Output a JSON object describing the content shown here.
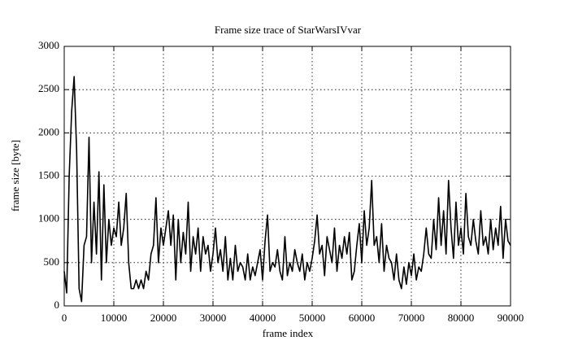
{
  "chart_data": {
    "type": "line",
    "title": "Frame size trace of StarWarsIVvar",
    "xlabel": "frame index",
    "ylabel": "frame size [byte]",
    "color": "#000000",
    "grid": true,
    "xlim": [
      0,
      90000
    ],
    "xticks": [
      0,
      10000,
      20000,
      30000,
      40000,
      50000,
      60000,
      70000,
      80000,
      90000
    ],
    "ylim": [
      0,
      3000
    ],
    "yticks": [
      0,
      500,
      1000,
      1500,
      2000,
      2500,
      3000
    ],
    "x": [
      0,
      500,
      1000,
      1500,
      2000,
      2500,
      3000,
      3500,
      4000,
      4500,
      5000,
      5500,
      6000,
      6500,
      7000,
      7500,
      8000,
      8500,
      9000,
      9500,
      10000,
      10500,
      11000,
      11500,
      12000,
      12500,
      13000,
      13500,
      14000,
      14500,
      15000,
      15500,
      16000,
      16500,
      17000,
      17500,
      18000,
      18500,
      19000,
      19500,
      20000,
      20500,
      21000,
      21500,
      22000,
      22500,
      23000,
      23500,
      24000,
      24500,
      25000,
      25500,
      26000,
      26500,
      27000,
      27500,
      28000,
      28500,
      29000,
      29500,
      30000,
      30500,
      31000,
      31500,
      32000,
      32500,
      33000,
      33500,
      34000,
      34500,
      35000,
      35500,
      36000,
      36500,
      37000,
      37500,
      38000,
      38500,
      39000,
      39500,
      40000,
      40500,
      41000,
      41500,
      42000,
      42500,
      43000,
      43500,
      44000,
      44500,
      45000,
      45500,
      46000,
      46500,
      47000,
      47500,
      48000,
      48500,
      49000,
      49500,
      50000,
      50500,
      51000,
      51500,
      52000,
      52500,
      53000,
      53500,
      54000,
      54500,
      55000,
      55500,
      56000,
      56500,
      57000,
      57500,
      58000,
      58500,
      59000,
      59500,
      60000,
      60500,
      61000,
      61500,
      62000,
      62500,
      63000,
      63500,
      64000,
      64500,
      65000,
      65500,
      66000,
      66500,
      67000,
      67500,
      68000,
      68500,
      69000,
      69500,
      70000,
      70500,
      71000,
      71500,
      72000,
      72500,
      73000,
      73500,
      74000,
      74500,
      75000,
      75500,
      76000,
      76500,
      77000,
      77500,
      78000,
      78500,
      79000,
      79500,
      80000,
      80500,
      81000,
      81500,
      82000,
      82500,
      83000,
      83500,
      84000,
      84500,
      85000,
      85500,
      86000,
      86500,
      87000,
      87500,
      88000,
      88500,
      89000,
      89500,
      90000
    ],
    "values": [
      400,
      150,
      1500,
      2250,
      2650,
      1800,
      200,
      50,
      700,
      800,
      1950,
      500,
      1200,
      600,
      1550,
      300,
      1400,
      500,
      1000,
      700,
      900,
      800,
      1200,
      700,
      900,
      1300,
      500,
      200,
      200,
      300,
      200,
      300,
      200,
      400,
      300,
      600,
      700,
      1250,
      500,
      900,
      700,
      900,
      1100,
      700,
      1050,
      300,
      1000,
      500,
      850,
      600,
      1200,
      400,
      800,
      600,
      900,
      400,
      800,
      600,
      700,
      400,
      600,
      900,
      500,
      650,
      400,
      800,
      300,
      550,
      300,
      700,
      400,
      500,
      450,
      300,
      600,
      300,
      450,
      350,
      500,
      650,
      300,
      750,
      1050,
      400,
      500,
      450,
      650,
      400,
      300,
      800,
      350,
      500,
      400,
      650,
      500,
      400,
      600,
      300,
      500,
      400,
      550,
      750,
      1050,
      600,
      700,
      350,
      800,
      650,
      500,
      900,
      400,
      700,
      550,
      800,
      600,
      850,
      300,
      400,
      700,
      950,
      500,
      1100,
      700,
      900,
      1450,
      700,
      800,
      500,
      950,
      400,
      700,
      550,
      500,
      300,
      600,
      300,
      200,
      450,
      250,
      500,
      350,
      600,
      300,
      450,
      400,
      600,
      900,
      600,
      550,
      1000,
      650,
      1250,
      700,
      1100,
      600,
      1450,
      900,
      550,
      1200,
      700,
      900,
      600,
      1300,
      800,
      700,
      1000,
      750,
      600,
      1100,
      700,
      800,
      600,
      1000,
      650,
      900,
      700,
      1150,
      550,
      1000,
      750,
      700
    ]
  }
}
